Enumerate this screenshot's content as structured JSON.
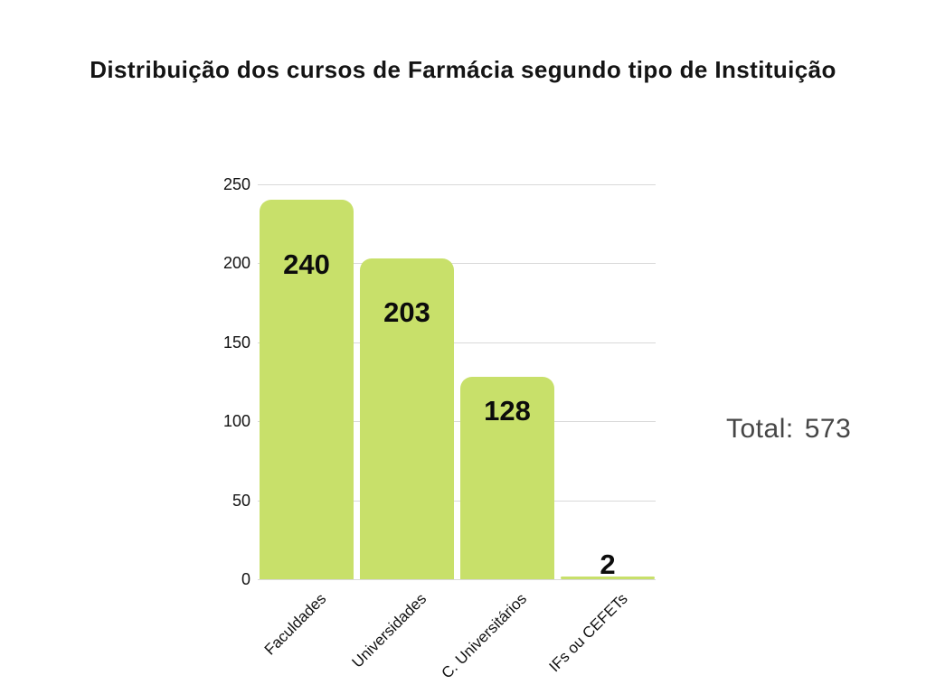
{
  "title": "Distribuição dos cursos de Farmácia segundo tipo de Instituição",
  "total": {
    "label": "Total:",
    "value": "573"
  },
  "chart_data": {
    "type": "bar",
    "title": "Distribuição dos cursos de Farmácia segundo tipo de Instituição",
    "categories": [
      "Faculdades",
      "Universidades",
      "C. Universitários",
      "IFs ou CEFETs"
    ],
    "values": [
      240,
      203,
      128,
      2
    ],
    "xlabel": "",
    "ylabel": "",
    "ylim": [
      0,
      250
    ],
    "yticks": [
      0,
      50,
      100,
      150,
      200,
      250
    ],
    "grid": true,
    "legend": "none",
    "bar_color": "#c8e06a",
    "gridline_color": "#d9d9d9",
    "value_label_color": "#0c0c0c"
  }
}
